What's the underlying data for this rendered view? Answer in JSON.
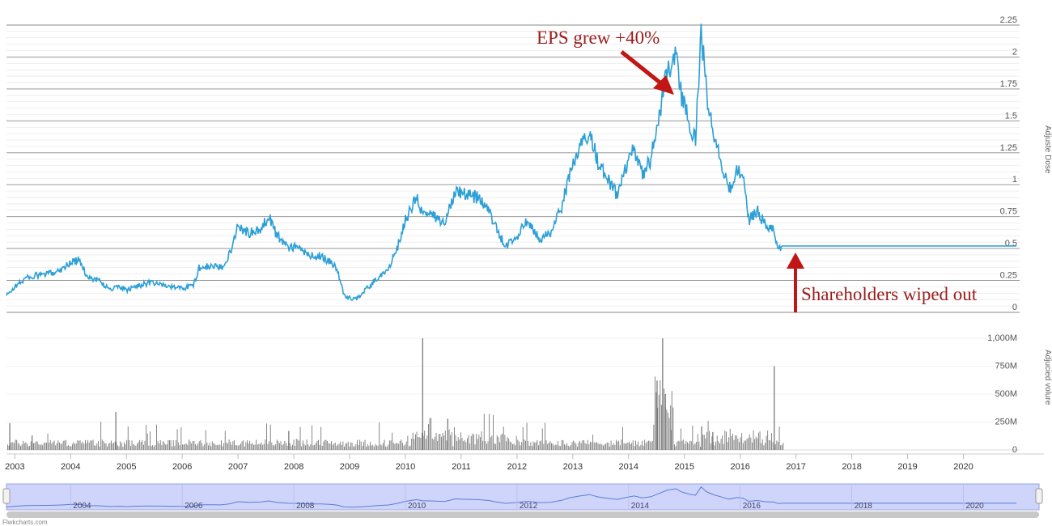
{
  "chart_data": {
    "type": "line",
    "x_unit": "year",
    "price_axis": {
      "title": "Adjuste Dose",
      "ticks": [
        "0",
        "0.25",
        "0.5",
        "0.75",
        "1",
        "1.25",
        "1.5",
        "1.75",
        "2",
        "2.25"
      ],
      "ylim": [
        0,
        2.25
      ]
    },
    "volume_axis": {
      "title": "Adjucied volure",
      "ticks": [
        "0",
        "250M",
        "500M",
        "750M",
        "1,000M"
      ],
      "ylim": [
        0,
        1000
      ]
    },
    "x_axis": {
      "ticks": [
        "2003",
        "2004",
        "2005",
        "2006",
        "2007",
        "2008",
        "2009",
        "2010",
        "2011",
        "2012",
        "2013",
        "2014",
        "2015",
        "2016",
        "2017",
        "2018",
        "2019",
        "2020"
      ],
      "xlim": [
        2002.85,
        2020.95
      ]
    },
    "navigator": {
      "ticks": [
        "2004",
        "2006",
        "2008",
        "2010",
        "2012",
        "2014",
        "2016",
        "2018",
        "2020"
      ]
    },
    "grid": true,
    "colors": {
      "price_line": "#2b9fd6",
      "volume_bars": "#7a7a7a",
      "annotation": "#c21515",
      "annotation_text": "#9b1b1b",
      "navigator_fill": "#cfd4fb"
    },
    "price_series": [
      [
        2002.85,
        0.13
      ],
      [
        2003.0,
        0.2
      ],
      [
        2003.2,
        0.27
      ],
      [
        2003.4,
        0.29
      ],
      [
        2003.6,
        0.3
      ],
      [
        2003.8,
        0.33
      ],
      [
        2004.0,
        0.39
      ],
      [
        2004.15,
        0.41
      ],
      [
        2004.3,
        0.28
      ],
      [
        2004.5,
        0.25
      ],
      [
        2004.7,
        0.18
      ],
      [
        2004.9,
        0.2
      ],
      [
        2005.0,
        0.17
      ],
      [
        2005.2,
        0.21
      ],
      [
        2005.4,
        0.23
      ],
      [
        2005.6,
        0.22
      ],
      [
        2005.8,
        0.2
      ],
      [
        2006.0,
        0.19
      ],
      [
        2006.2,
        0.21
      ],
      [
        2006.3,
        0.35
      ],
      [
        2006.5,
        0.36
      ],
      [
        2006.7,
        0.35
      ],
      [
        2006.85,
        0.46
      ],
      [
        2007.0,
        0.68
      ],
      [
        2007.2,
        0.62
      ],
      [
        2007.4,
        0.64
      ],
      [
        2007.55,
        0.76
      ],
      [
        2007.7,
        0.6
      ],
      [
        2007.9,
        0.52
      ],
      [
        2008.1,
        0.5
      ],
      [
        2008.3,
        0.44
      ],
      [
        2008.5,
        0.44
      ],
      [
        2008.7,
        0.38
      ],
      [
        2008.8,
        0.3
      ],
      [
        2008.9,
        0.13
      ],
      [
        2009.1,
        0.1
      ],
      [
        2009.3,
        0.18
      ],
      [
        2009.5,
        0.27
      ],
      [
        2009.7,
        0.34
      ],
      [
        2009.85,
        0.5
      ],
      [
        2010.0,
        0.72
      ],
      [
        2010.2,
        0.9
      ],
      [
        2010.3,
        0.78
      ],
      [
        2010.5,
        0.75
      ],
      [
        2010.7,
        0.7
      ],
      [
        2010.9,
        0.97
      ],
      [
        2011.1,
        0.92
      ],
      [
        2011.3,
        0.9
      ],
      [
        2011.5,
        0.8
      ],
      [
        2011.6,
        0.68
      ],
      [
        2011.8,
        0.51
      ],
      [
        2012.0,
        0.6
      ],
      [
        2012.2,
        0.72
      ],
      [
        2012.4,
        0.58
      ],
      [
        2012.6,
        0.62
      ],
      [
        2012.8,
        0.82
      ],
      [
        2012.95,
        1.1
      ],
      [
        2013.15,
        1.3
      ],
      [
        2013.3,
        1.42
      ],
      [
        2013.45,
        1.18
      ],
      [
        2013.6,
        1.05
      ],
      [
        2013.8,
        0.92
      ],
      [
        2013.95,
        1.12
      ],
      [
        2014.1,
        1.28
      ],
      [
        2014.25,
        1.08
      ],
      [
        2014.4,
        1.2
      ],
      [
        2014.55,
        1.55
      ],
      [
        2014.7,
        1.9
      ],
      [
        2014.85,
        2.03
      ],
      [
        2014.95,
        1.7
      ],
      [
        2015.1,
        1.45
      ],
      [
        2015.2,
        1.35
      ],
      [
        2015.3,
        2.22
      ],
      [
        2015.4,
        1.7
      ],
      [
        2015.55,
        1.35
      ],
      [
        2015.65,
        1.2
      ],
      [
        2015.8,
        0.95
      ],
      [
        2015.95,
        1.12
      ],
      [
        2016.05,
        1.05
      ],
      [
        2016.15,
        0.72
      ],
      [
        2016.3,
        0.8
      ],
      [
        2016.45,
        0.68
      ],
      [
        2016.6,
        0.64
      ],
      [
        2016.68,
        0.48
      ],
      [
        2016.75,
        0.52
      ],
      [
        2020.95,
        0.52
      ]
    ],
    "volume_spikes": [
      [
        2002.9,
        240
      ],
      [
        2003.3,
        130
      ],
      [
        2004.8,
        340
      ],
      [
        2007.9,
        170
      ],
      [
        2010.3,
        1000
      ],
      [
        2010.75,
        280
      ],
      [
        2014.5,
        620
      ],
      [
        2014.6,
        1000
      ],
      [
        2014.65,
        500
      ],
      [
        2014.75,
        180
      ],
      [
        2015.3,
        210
      ],
      [
        2015.5,
        160
      ],
      [
        2016.6,
        750
      ]
    ]
  },
  "annotations": {
    "eps": "EPS grew +40%",
    "wiped": "Shareholders wiped out"
  },
  "credits": "Flwkcharts.com"
}
